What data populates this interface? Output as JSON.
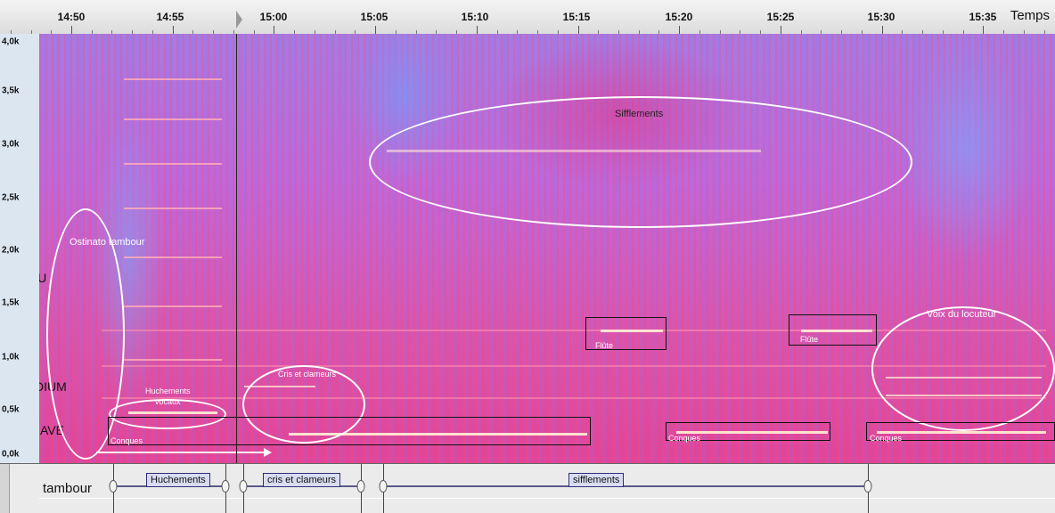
{
  "ruler": {
    "time_label": "Temps",
    "ticks": [
      "14:50",
      "14:55",
      "15:00",
      "15:05",
      "15:10",
      "15:15",
      "15:20",
      "15:25",
      "15:30",
      "15:35"
    ]
  },
  "y_axis": {
    "labels": [
      "4,0k",
      "3,5k",
      "3,0k",
      "2,5k",
      "2,0k",
      "1,5k",
      "1,0k",
      "0,5k",
      "0,0k"
    ]
  },
  "zones": {
    "aigu": "AIGU",
    "medium": "MEDIUM",
    "grave": "GRAVE"
  },
  "annotations": {
    "ostinato": "Ostinato tambour",
    "sifflements": "Sifflements",
    "huchements_line1": "Huchements",
    "huchements_line2": "vocaux",
    "cris": "Cris et clameurs",
    "flute_1": "Flûte",
    "flute_2": "Flûte",
    "voix": "Voix du locuteur",
    "conques_1": "Conques",
    "conques_2": "Conques",
    "conques_3": "Conques"
  },
  "tier": {
    "name": "tambour",
    "segments": [
      "Huchements",
      "cris et clameurs",
      "sifflements"
    ]
  },
  "colors": {
    "spectrogram_base": "#d855ad",
    "harmonic": "#ffebd2",
    "annotation": "#ffffff",
    "segment_fill": "#d8dcf2"
  }
}
